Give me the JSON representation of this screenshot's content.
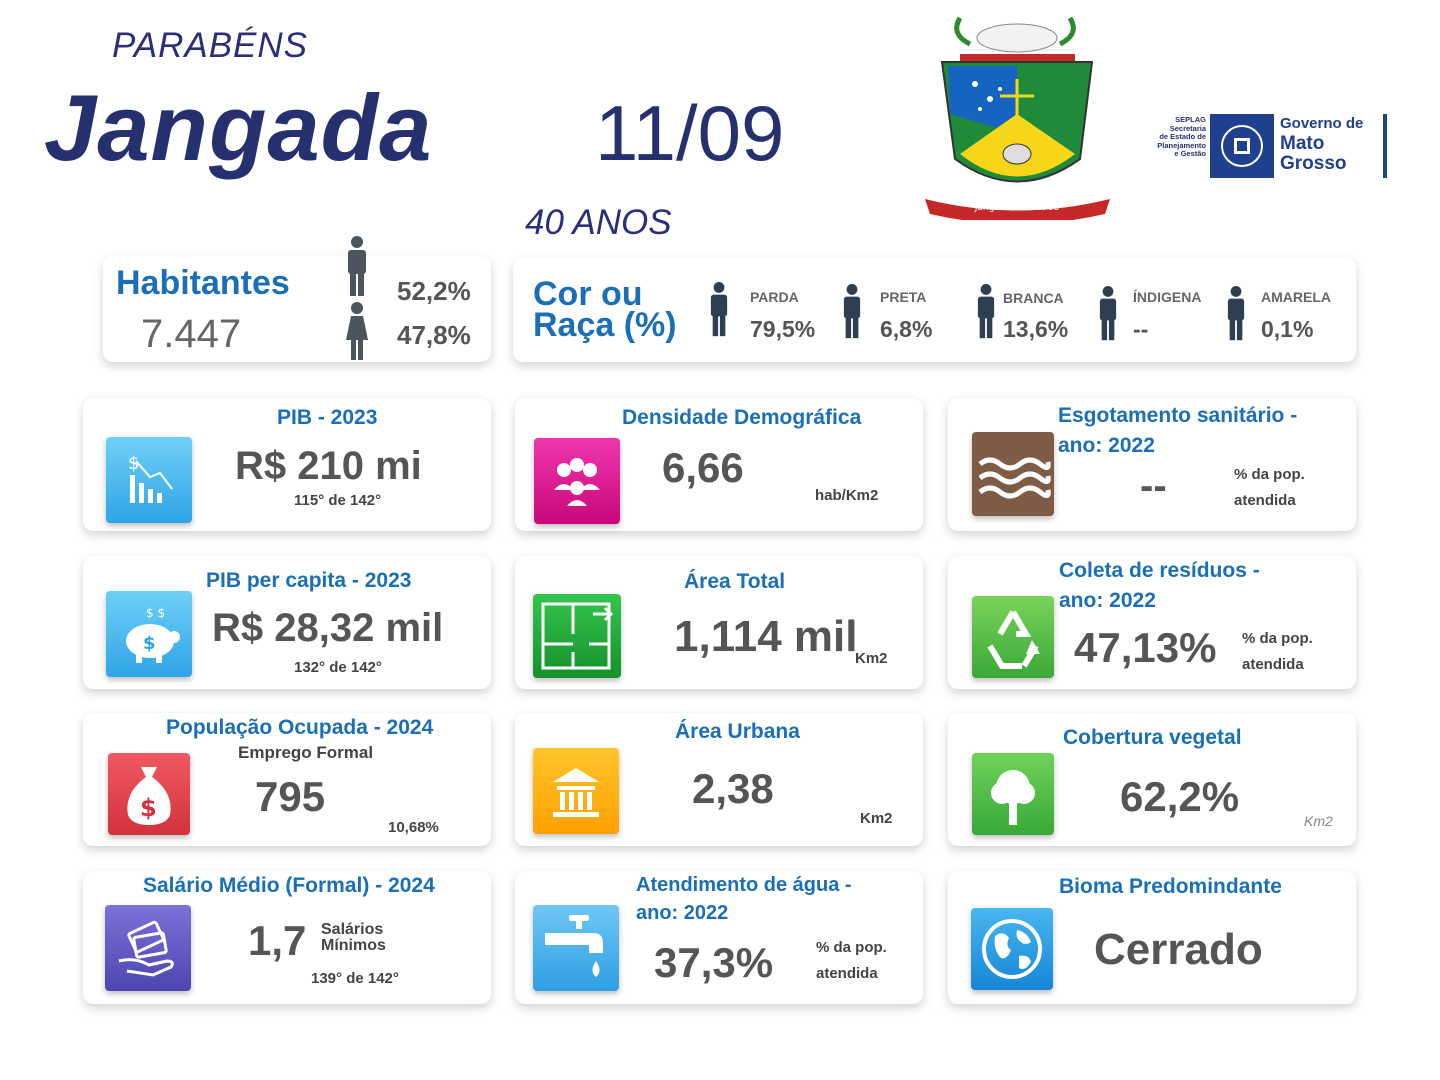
{
  "header": {
    "greeting": "PARABÉNS",
    "city": "Jangada",
    "date": "11/09",
    "anniversary": "40 ANOS",
    "crest_text": "Jangada/MT - 1988",
    "gov_small": [
      "SEPLAG",
      "Secretaria",
      "de Estado de",
      "Planejamento",
      "e Gestão"
    ],
    "gov_name": [
      "Governo de",
      "Mato",
      "Grosso"
    ]
  },
  "habitantes": {
    "title": "Habitantes",
    "value": "7.447",
    "male_pct": "52,2%",
    "female_pct": "47,8%"
  },
  "raca": {
    "title_line1": "Cor ou",
    "title_line2": "Raça (%)",
    "items": [
      {
        "label": "PARDA",
        "value": "79,5%"
      },
      {
        "label": "PRETA",
        "value": "6,8%"
      },
      {
        "label": "BRANCA",
        "value": "13,6%"
      },
      {
        "label": "ÍNDIGENA",
        "value": "--"
      },
      {
        "label": "AMARELA",
        "value": "0,1%"
      }
    ]
  },
  "cards": {
    "pib": {
      "title": "PIB - 2023",
      "value": "R$ 210 mi",
      "rank": "115° de 142°"
    },
    "densidade": {
      "title": "Densidade Demográfica",
      "value": "6,66",
      "unit": "hab/Km2"
    },
    "esgoto": {
      "title_line1": "Esgotamento sanitário -",
      "title_line2": "ano: 2022",
      "value": "--",
      "unit_line1": "% da pop.",
      "unit_line2": "atendida"
    },
    "pib_pc": {
      "title": "PIB per capita - 2023",
      "value": "R$ 28,32 mil",
      "rank": "132° de 142°"
    },
    "area_total": {
      "title": "Área Total",
      "value": "1,114 mil",
      "unit": "Km2"
    },
    "residuos": {
      "title_line1": "Coleta de resíduos -",
      "title_line2": "ano: 2022",
      "value": "47,13%",
      "unit_line1": "% da pop.",
      "unit_line2": "atendida"
    },
    "pop_ocupada": {
      "title": "População Ocupada - 2024",
      "subtitle": "Emprego Formal",
      "value": "795",
      "pct": "10,68%"
    },
    "area_urbana": {
      "title": "Área Urbana",
      "value": "2,38",
      "unit": "Km2"
    },
    "vegetal": {
      "title": "Cobertura vegetal",
      "value": "62,2%",
      "unit": "Km2"
    },
    "salario": {
      "title": "Salário Médio (Formal) - 2024",
      "value": "1,7",
      "unit_line1": "Salários",
      "unit_line2": "Mínimos",
      "rank": "139° de 142°"
    },
    "agua": {
      "title_line1": "Atendimento de água -",
      "title_line2": "ano: 2022",
      "value": "37,3%",
      "unit_line1": "% da pop.",
      "unit_line2": "atendida"
    },
    "bioma": {
      "title": "Bioma Predomindante",
      "value": "Cerrado"
    }
  },
  "colors": {
    "title_blue": "#1a6fb8",
    "navy": "#26306f",
    "pib_icon": "#3ab0ea",
    "densidade_icon": "#e0168c",
    "esgoto_icon": "#7d5b45",
    "area_total_icon": "#22a33a",
    "residuos_icon": "#5cc04a",
    "pop_icon": "#e04050",
    "urbana_icon": "#ffb400",
    "vegetal_icon": "#4cbb3c",
    "salario_icon": "#5a55c0",
    "agua_icon": "#3aa8e8",
    "bioma_icon": "#1e9be0"
  }
}
